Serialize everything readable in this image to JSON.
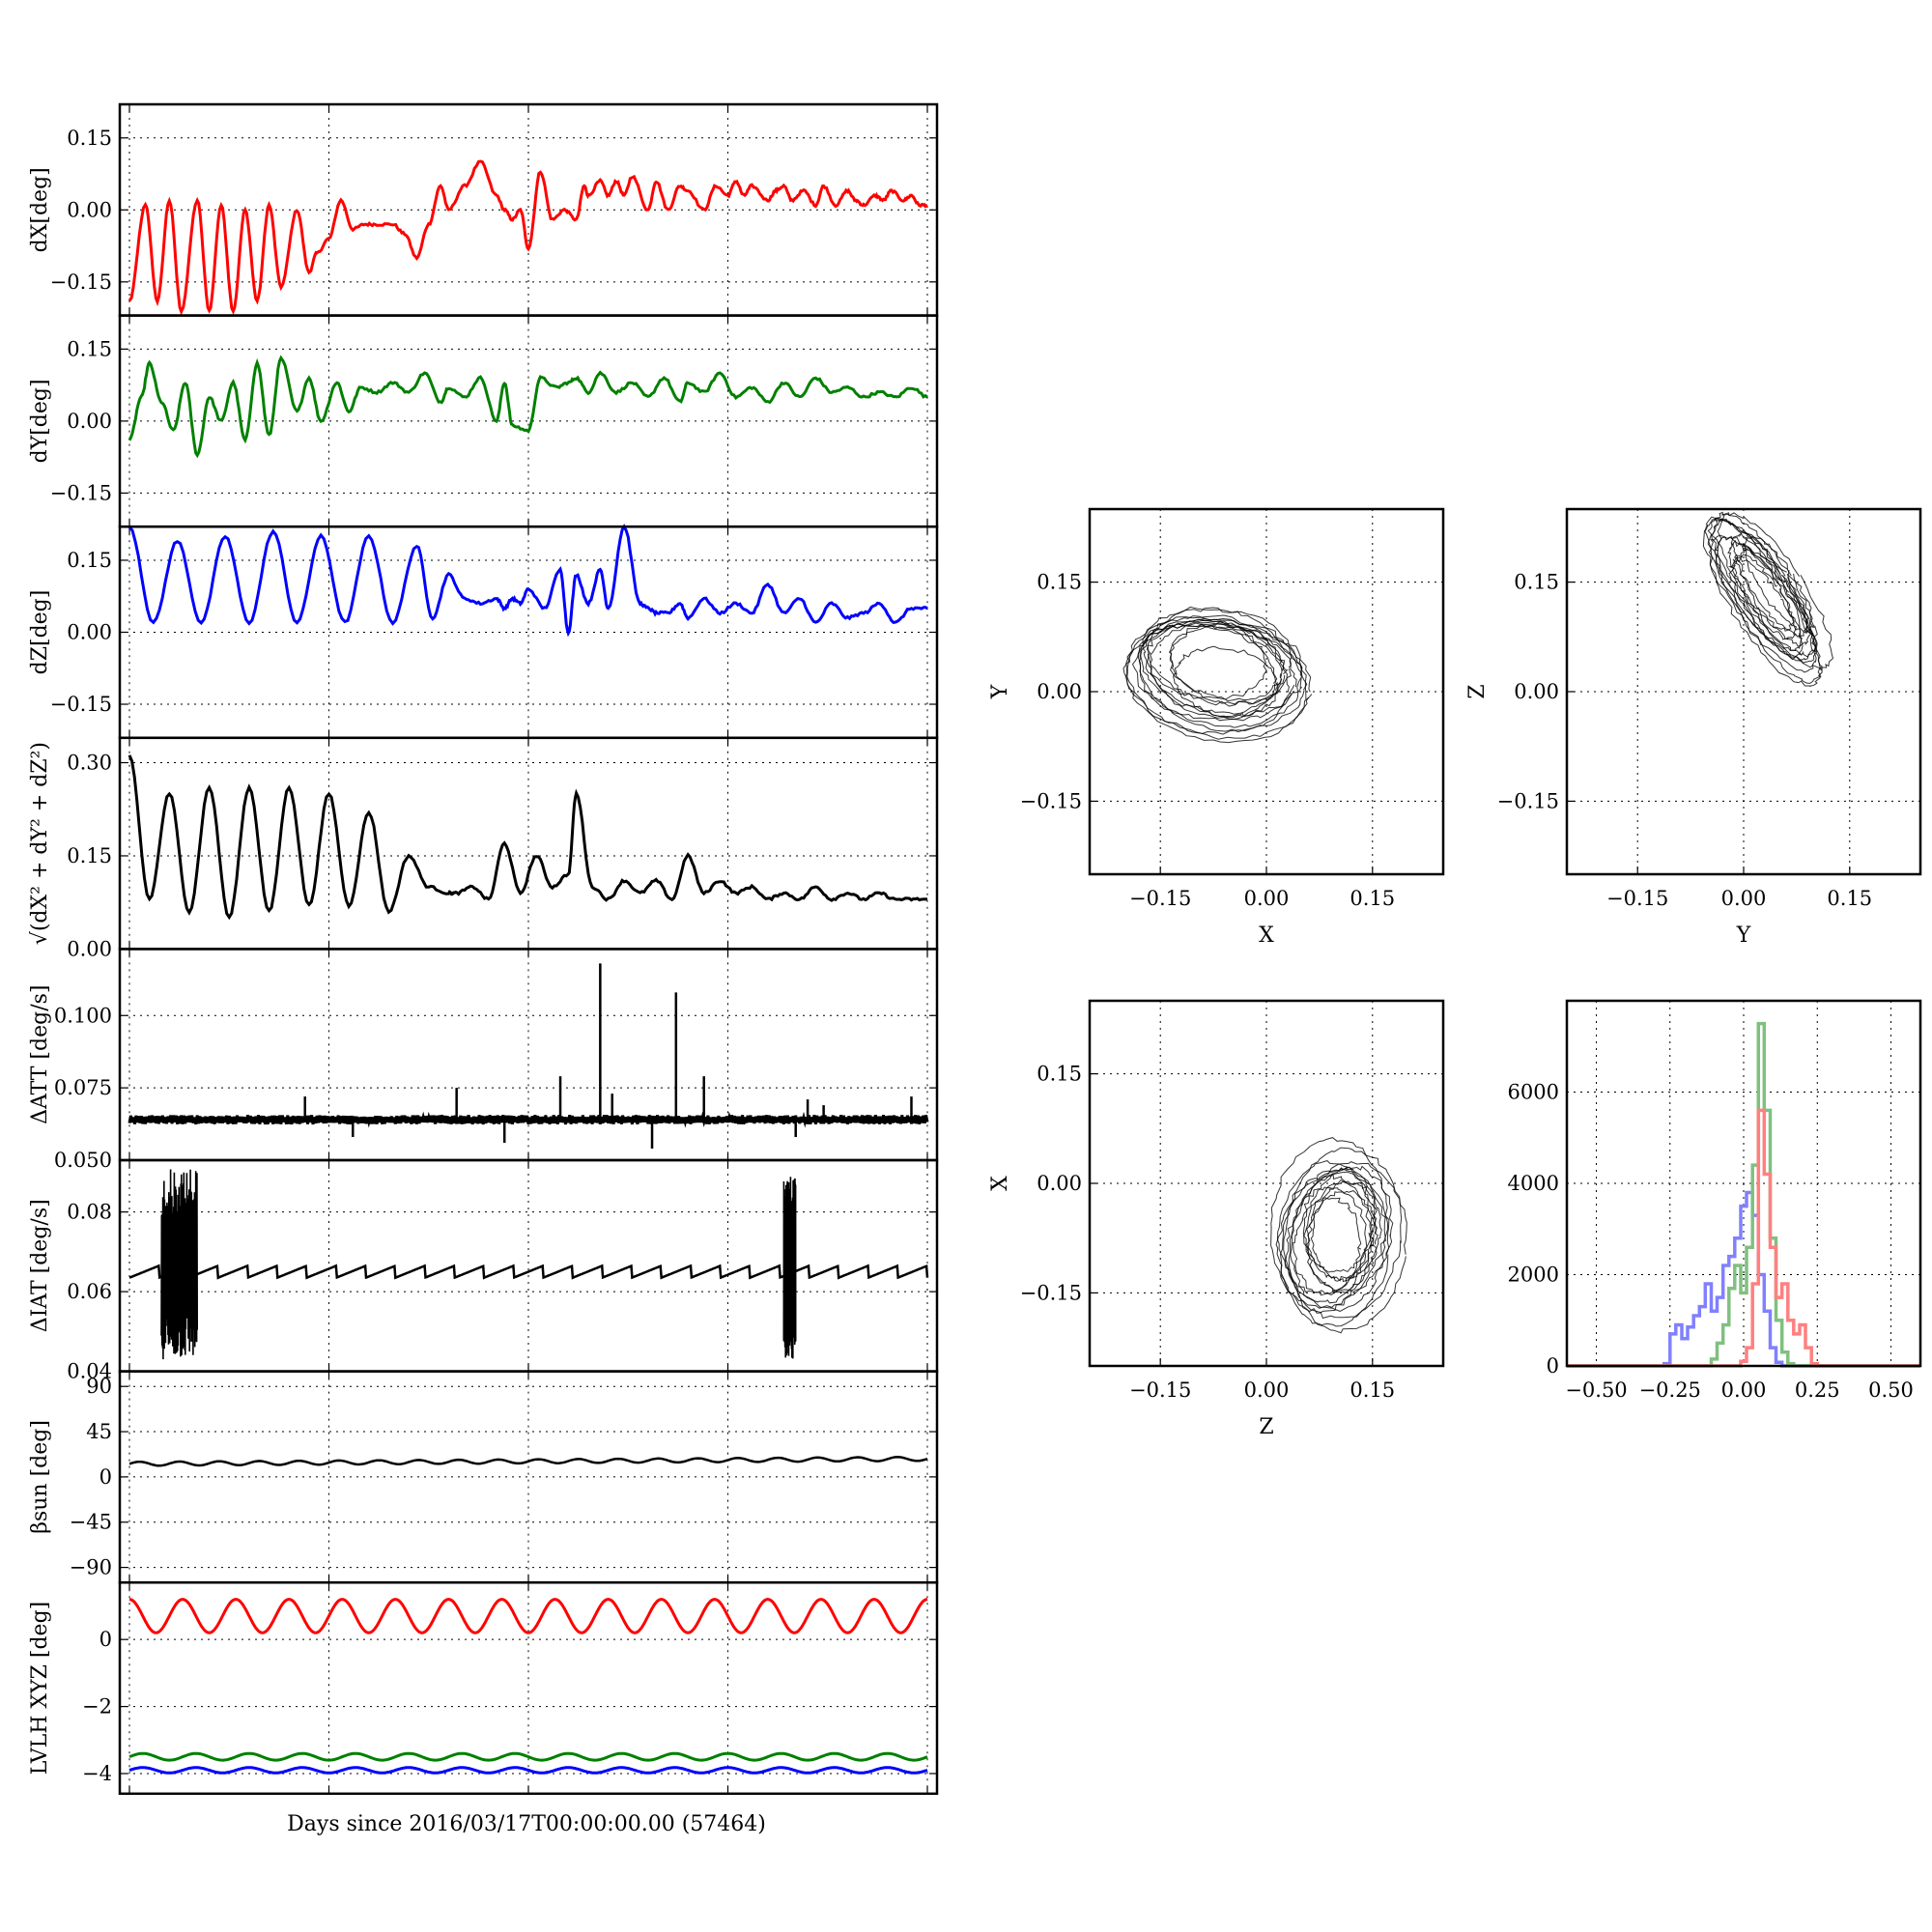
{
  "figure": {
    "xlabel": "Days since 2016/03/17T00:00:00.00 (57464)"
  },
  "chart_data": [
    {
      "id": "dx",
      "type": "line",
      "ylabel": "dX[deg]",
      "yticks": [
        -0.15,
        0.0,
        0.15
      ],
      "ytick_labels": [
        "−0.15",
        "0.00",
        "0.15"
      ],
      "ylim": [
        -0.22,
        0.22
      ],
      "grid": true,
      "series": [
        {
          "color": "#ff0000",
          "x": [
            0,
            0.02,
            0.035,
            0.05,
            0.065,
            0.085,
            0.1,
            0.115,
            0.13,
            0.145,
            0.16,
            0.175,
            0.19,
            0.21,
            0.225,
            0.235,
            0.25,
            0.265,
            0.28,
            0.295,
            0.31,
            0.33,
            0.345,
            0.36,
            0.375,
            0.39,
            0.4,
            0.42,
            0.44,
            0.46,
            0.47,
            0.48,
            0.49,
            0.5,
            0.515,
            0.53,
            0.545,
            0.56,
            0.57,
            0.575,
            0.59,
            0.6,
            0.61,
            0.62,
            0.63,
            0.65,
            0.66,
            0.675,
            0.69,
            0.7,
            0.72,
            0.735,
            0.75,
            0.76,
            0.77,
            0.78,
            0.8,
            0.81,
            0.82,
            0.83,
            0.845,
            0.86,
            0.87,
            0.885,
            0.9,
            0.91,
            0.92,
            0.935,
            0.945,
            0.955,
            0.97,
            0.98,
            0.99,
            1.0
          ],
          "y": [
            -0.19,
            0.01,
            -0.19,
            0.02,
            -0.21,
            0.02,
            -0.21,
            0.01,
            -0.21,
            0.0,
            -0.19,
            0.01,
            -0.16,
            0.0,
            -0.13,
            -0.09,
            -0.06,
            0.02,
            -0.04,
            -0.03,
            -0.03,
            -0.03,
            -0.05,
            -0.1,
            -0.03,
            0.05,
            0.0,
            0.05,
            0.1,
            0.03,
            0.0,
            -0.02,
            0.0,
            -0.08,
            0.08,
            -0.02,
            0.0,
            -0.02,
            0.05,
            0.03,
            0.06,
            0.03,
            0.06,
            0.03,
            0.07,
            0.0,
            0.06,
            0.0,
            0.05,
            0.04,
            0.0,
            0.05,
            0.03,
            0.06,
            0.03,
            0.05,
            0.02,
            0.04,
            0.05,
            0.02,
            0.04,
            0.01,
            0.05,
            0.01,
            0.04,
            0.02,
            0.01,
            0.03,
            0.02,
            0.04,
            0.02,
            0.03,
            0.01,
            0.01
          ]
        }
      ]
    },
    {
      "id": "dy",
      "type": "line",
      "ylabel": "dY[deg]",
      "yticks": [
        -0.15,
        0.0,
        0.15
      ],
      "ytick_labels": [
        "−0.15",
        "0.00",
        "0.15"
      ],
      "ylim": [
        -0.22,
        0.22
      ],
      "grid": true,
      "series": [
        {
          "color": "#008000",
          "x": [
            0,
            0.015,
            0.025,
            0.04,
            0.055,
            0.07,
            0.085,
            0.1,
            0.115,
            0.13,
            0.145,
            0.16,
            0.175,
            0.19,
            0.21,
            0.225,
            0.24,
            0.26,
            0.275,
            0.29,
            0.31,
            0.33,
            0.35,
            0.37,
            0.39,
            0.4,
            0.42,
            0.44,
            0.46,
            0.47,
            0.48,
            0.5,
            0.515,
            0.535,
            0.55,
            0.56,
            0.575,
            0.59,
            0.61,
            0.63,
            0.65,
            0.67,
            0.69,
            0.7,
            0.72,
            0.74,
            0.76,
            0.78,
            0.8,
            0.82,
            0.84,
            0.86,
            0.88,
            0.9,
            0.92,
            0.94,
            0.96,
            0.98,
            1.0
          ],
          "y": [
            -0.04,
            0.05,
            0.12,
            0.04,
            -0.02,
            0.08,
            -0.07,
            0.05,
            0.0,
            0.08,
            -0.04,
            0.12,
            -0.03,
            0.13,
            0.02,
            0.09,
            0.0,
            0.08,
            0.02,
            0.07,
            0.06,
            0.08,
            0.06,
            0.1,
            0.04,
            0.07,
            0.05,
            0.09,
            0.0,
            0.08,
            -0.01,
            -0.02,
            0.09,
            0.07,
            0.08,
            0.09,
            0.06,
            0.1,
            0.06,
            0.08,
            0.05,
            0.09,
            0.04,
            0.08,
            0.06,
            0.1,
            0.05,
            0.07,
            0.04,
            0.08,
            0.05,
            0.09,
            0.06,
            0.07,
            0.05,
            0.06,
            0.05,
            0.07,
            0.05
          ]
        }
      ]
    },
    {
      "id": "dz",
      "type": "line",
      "ylabel": "dZ[deg]",
      "yticks": [
        -0.15,
        0.0,
        0.15
      ],
      "ytick_labels": [
        "−0.15",
        "0.00",
        "0.15"
      ],
      "ylim": [
        -0.22,
        0.22
      ],
      "grid": true,
      "series": [
        {
          "color": "#0000ff",
          "x": [
            0,
            0.03,
            0.06,
            0.09,
            0.12,
            0.15,
            0.18,
            0.21,
            0.24,
            0.27,
            0.3,
            0.33,
            0.36,
            0.38,
            0.4,
            0.42,
            0.44,
            0.46,
            0.47,
            0.48,
            0.49,
            0.5,
            0.52,
            0.54,
            0.55,
            0.56,
            0.575,
            0.59,
            0.6,
            0.62,
            0.64,
            0.65,
            0.66,
            0.675,
            0.69,
            0.7,
            0.72,
            0.74,
            0.76,
            0.78,
            0.8,
            0.82,
            0.84,
            0.86,
            0.88,
            0.9,
            0.92,
            0.94,
            0.96,
            0.98,
            1.0
          ],
          "y": [
            0.22,
            0.02,
            0.19,
            0.02,
            0.2,
            0.02,
            0.21,
            0.02,
            0.2,
            0.02,
            0.2,
            0.02,
            0.18,
            0.03,
            0.12,
            0.07,
            0.06,
            0.07,
            0.05,
            0.07,
            0.06,
            0.09,
            0.05,
            0.13,
            0.0,
            0.12,
            0.06,
            0.13,
            0.05,
            0.22,
            0.06,
            0.05,
            0.04,
            0.04,
            0.06,
            0.03,
            0.07,
            0.04,
            0.06,
            0.04,
            0.1,
            0.04,
            0.07,
            0.02,
            0.06,
            0.03,
            0.04,
            0.06,
            0.02,
            0.05,
            0.05
          ]
        }
      ]
    },
    {
      "id": "dr",
      "type": "line",
      "ylabel": "√(dX² + dY² + dZ²)",
      "yticks": [
        0.0,
        0.15,
        0.3
      ],
      "ytick_labels": [
        "0.00",
        "0.15",
        "0.30"
      ],
      "ylim": [
        0.0,
        0.34
      ],
      "grid": true,
      "series": [
        {
          "color": "#000000",
          "x": [
            0,
            0.025,
            0.05,
            0.075,
            0.1,
            0.125,
            0.15,
            0.175,
            0.2,
            0.225,
            0.25,
            0.275,
            0.3,
            0.325,
            0.35,
            0.375,
            0.4,
            0.41,
            0.43,
            0.45,
            0.47,
            0.49,
            0.51,
            0.53,
            0.55,
            0.56,
            0.58,
            0.6,
            0.62,
            0.64,
            0.66,
            0.68,
            0.7,
            0.72,
            0.74,
            0.76,
            0.78,
            0.8,
            0.82,
            0.84,
            0.86,
            0.88,
            0.9,
            0.92,
            0.94,
            0.96,
            0.98,
            1.0
          ],
          "y": [
            0.31,
            0.08,
            0.25,
            0.06,
            0.26,
            0.05,
            0.26,
            0.06,
            0.26,
            0.07,
            0.25,
            0.07,
            0.22,
            0.06,
            0.15,
            0.1,
            0.09,
            0.09,
            0.1,
            0.08,
            0.17,
            0.09,
            0.15,
            0.1,
            0.12,
            0.25,
            0.1,
            0.08,
            0.11,
            0.09,
            0.11,
            0.08,
            0.15,
            0.09,
            0.11,
            0.09,
            0.1,
            0.08,
            0.09,
            0.08,
            0.1,
            0.08,
            0.09,
            0.08,
            0.09,
            0.08,
            0.08,
            0.08
          ]
        }
      ]
    },
    {
      "id": "datt",
      "type": "line",
      "ylabel": "ΔATT [deg/s]",
      "yticks": [
        0.05,
        0.075,
        0.1
      ],
      "ytick_labels": [
        "0.050",
        "0.075",
        "0.100"
      ],
      "ylim": [
        0.05,
        0.123
      ],
      "grid": true,
      "baseline": 0.064,
      "spikes": [
        {
          "x": 0.22,
          "y": 0.072
        },
        {
          "x": 0.28,
          "y": 0.058
        },
        {
          "x": 0.41,
          "y": 0.075
        },
        {
          "x": 0.47,
          "y": 0.056
        },
        {
          "x": 0.54,
          "y": 0.079
        },
        {
          "x": 0.59,
          "y": 0.118
        },
        {
          "x": 0.605,
          "y": 0.073
        },
        {
          "x": 0.655,
          "y": 0.054
        },
        {
          "x": 0.685,
          "y": 0.108
        },
        {
          "x": 0.72,
          "y": 0.079
        },
        {
          "x": 0.835,
          "y": 0.058
        },
        {
          "x": 0.85,
          "y": 0.071
        },
        {
          "x": 0.87,
          "y": 0.069
        },
        {
          "x": 0.98,
          "y": 0.072
        }
      ],
      "series": [
        {
          "color": "#000000"
        }
      ]
    },
    {
      "id": "diat",
      "type": "line",
      "ylabel": "ΔIAT [deg/s]",
      "yticks": [
        0.04,
        0.06,
        0.08
      ],
      "ytick_labels": [
        "0.04",
        "0.06",
        "0.08"
      ],
      "ylim": [
        0.04,
        0.093
      ],
      "grid": true,
      "baseline": 0.065,
      "bursts": [
        {
          "x0": 0.04,
          "x1": 0.085,
          "ymin": 0.043,
          "ymax": 0.091
        },
        {
          "x0": 0.82,
          "x1": 0.835,
          "ymin": 0.043,
          "ymax": 0.089
        }
      ],
      "series": [
        {
          "color": "#000000"
        }
      ]
    },
    {
      "id": "beta",
      "type": "line",
      "ylabel": "βsun [deg]",
      "yticks": [
        -90,
        -45,
        0,
        45,
        90
      ],
      "ytick_labels": [
        "−90",
        "−45",
        "0",
        "45",
        "90"
      ],
      "ylim": [
        -105,
        105
      ],
      "grid": true,
      "series": [
        {
          "color": "#000000",
          "start": 13,
          "end": 18
        }
      ]
    },
    {
      "id": "lvlh",
      "type": "line",
      "ylabel": "LVLH XYZ [deg]",
      "yticks": [
        -4,
        -2,
        0
      ],
      "ytick_labels": [
        "−4",
        "−2",
        "0"
      ],
      "ylim": [
        -4.6,
        1.7
      ],
      "grid": true,
      "series": [
        {
          "color": "#ff0000",
          "center": 0.7,
          "amp": 0.5
        },
        {
          "color": "#008000",
          "center": -3.5,
          "amp": 0.1
        },
        {
          "color": "#0000ff",
          "center": -3.9,
          "amp": 0.08
        }
      ]
    },
    {
      "id": "xy",
      "type": "scatter",
      "xlabel": "X",
      "ylabel": "Y",
      "ticks": [
        -0.15,
        0.0,
        0.15
      ],
      "tick_labels": [
        "−0.15",
        "0.00",
        "0.15"
      ],
      "lim": [
        -0.25,
        0.25
      ],
      "grid": true
    },
    {
      "id": "yz",
      "type": "scatter",
      "xlabel": "Y",
      "ylabel": "Z",
      "ticks": [
        -0.15,
        0.0,
        0.15
      ],
      "tick_labels": [
        "−0.15",
        "0.00",
        "0.15"
      ],
      "lim": [
        -0.25,
        0.25
      ],
      "grid": true
    },
    {
      "id": "zx",
      "type": "scatter",
      "xlabel": "Z",
      "ylabel": "X",
      "ticks": [
        -0.15,
        0.0,
        0.15
      ],
      "tick_labels": [
        "−0.15",
        "0.00",
        "0.15"
      ],
      "lim": [
        -0.25,
        0.25
      ],
      "grid": true
    },
    {
      "id": "hist",
      "type": "bar",
      "xticks": [
        -0.5,
        -0.25,
        0.0,
        0.25,
        0.5
      ],
      "xtick_labels": [
        "−0.50",
        "−0.25",
        "0.00",
        "0.25",
        "0.50"
      ],
      "yticks": [
        0,
        2000,
        4000,
        6000
      ],
      "ytick_labels": [
        "0",
        "2000",
        "4000",
        "6000"
      ],
      "xlim": [
        -0.6,
        0.6
      ],
      "ylim": [
        0,
        8000
      ],
      "grid": true,
      "series": [
        {
          "color": "#8080ff",
          "x": [
            -0.26,
            -0.24,
            -0.22,
            -0.2,
            -0.18,
            -0.16,
            -0.14,
            -0.12,
            -0.1,
            -0.08,
            -0.06,
            -0.04,
            -0.02,
            0.0,
            0.02,
            0.04,
            0.06,
            0.08,
            0.1,
            0.12
          ],
          "values": [
            50,
            700,
            900,
            600,
            850,
            1100,
            1300,
            1800,
            1200,
            1500,
            2200,
            2400,
            2800,
            3500,
            3800,
            3300,
            2000,
            1200,
            400,
            80
          ]
        },
        {
          "color": "#80c080",
          "x": [
            -0.1,
            -0.08,
            -0.06,
            -0.04,
            -0.02,
            0.0,
            0.02,
            0.04,
            0.06,
            0.08,
            0.1,
            0.12,
            0.14,
            0.16
          ],
          "values": [
            150,
            500,
            900,
            1700,
            2200,
            1600,
            2600,
            4400,
            7500,
            5600,
            2800,
            1000,
            300,
            50
          ]
        },
        {
          "color": "#ff8080",
          "x": [
            0.0,
            0.02,
            0.04,
            0.06,
            0.08,
            0.1,
            0.12,
            0.14,
            0.16,
            0.18,
            0.2,
            0.22,
            0.24
          ],
          "values": [
            100,
            400,
            1800,
            5600,
            4200,
            2600,
            1500,
            1800,
            1000,
            700,
            900,
            400,
            50
          ]
        }
      ]
    }
  ]
}
